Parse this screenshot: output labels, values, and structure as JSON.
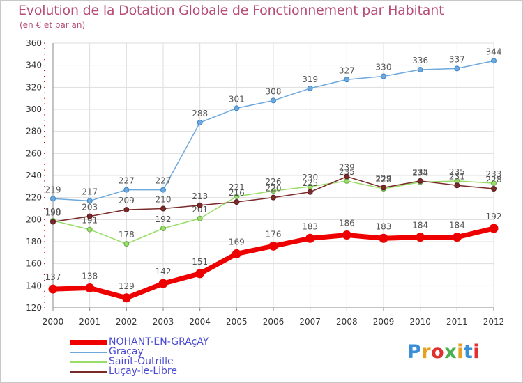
{
  "title": "Evolution de la Dotation Globale de Fonctionnement par Habitant",
  "subtitle": "(en € et par an)",
  "logo": {
    "text": "Proxiti",
    "colors": [
      "#3a8fd6",
      "#e8a020",
      "#e03030",
      "#4caf50",
      "#e8a020",
      "#3a8fd6",
      "#e03030"
    ]
  },
  "chart_data": {
    "type": "line",
    "title": "Evolution de la Dotation Globale de Fonctionnement par Habitant",
    "subtitle": "(en € et par an)",
    "x": [
      "2000",
      "2001",
      "2002",
      "2003",
      "2004",
      "2005",
      "2006",
      "2007",
      "2008",
      "2009",
      "2010",
      "2011",
      "2012"
    ],
    "ylim": [
      120,
      360
    ],
    "yticks": [
      120,
      140,
      160,
      180,
      200,
      220,
      240,
      260,
      280,
      300,
      320,
      340,
      360
    ],
    "grid": true,
    "legend_position": "bottom-left",
    "series": [
      {
        "name": "NOHANT-EN-GRAçAY",
        "color": "#ee0000",
        "bold": true,
        "values": [
          137,
          138,
          129,
          142,
          151,
          169,
          176,
          183,
          186,
          183,
          184,
          184,
          192
        ]
      },
      {
        "name": "Graçay",
        "color": "#6fa8dc",
        "values": [
          219,
          217,
          227,
          227,
          288,
          301,
          308,
          319,
          327,
          330,
          336,
          337,
          344
        ]
      },
      {
        "name": "Saint-Outrille",
        "color": "#99dd66",
        "values": [
          199,
          191,
          178,
          192,
          201,
          221,
          226,
          230,
          235,
          228,
          234,
          235,
          233
        ]
      },
      {
        "name": "Luçay-le-Libre",
        "color": "#7a2a2a",
        "values": [
          198,
          203,
          209,
          210,
          213,
          216,
          220,
          225,
          239,
          229,
          235,
          231,
          228
        ]
      }
    ]
  }
}
